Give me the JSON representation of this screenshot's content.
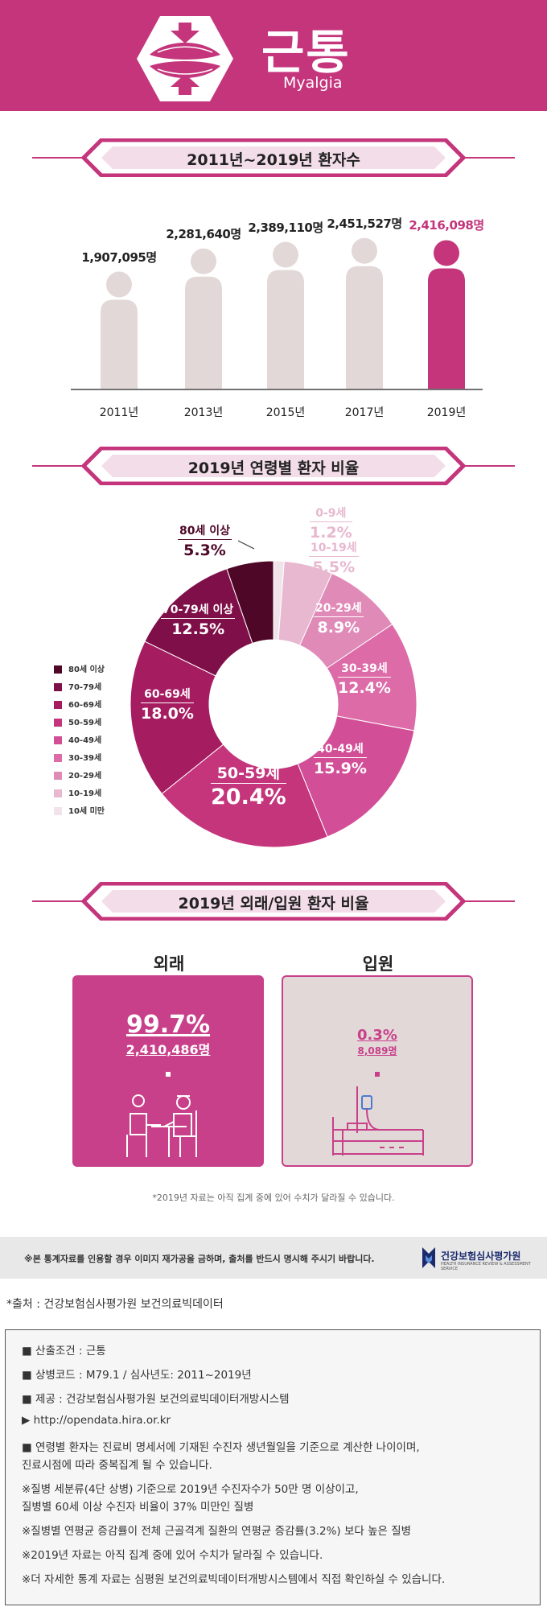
{
  "header": {
    "title": "근통",
    "subtitle": "Myalgia",
    "icon": "muscle-icon"
  },
  "section1": {
    "title": "2011년~2019년 환자수"
  },
  "section2": {
    "title": "2019년 연령별 환자 비율"
  },
  "section3": {
    "title": "2019년 외래/입원 환자 비율"
  },
  "colors": {
    "brand": "#c4357c",
    "figure_default": "#e3d8d8",
    "figure_highlight": "#c4357c"
  },
  "chart_data": [
    {
      "type": "bar",
      "categories": [
        "2011년",
        "2013년",
        "2015년",
        "2017년",
        "2019년"
      ],
      "values": [
        1907095,
        2281640,
        2389110,
        2451527,
        2416098
      ],
      "value_labels": [
        "1,907,095명",
        "2,281,640명",
        "2,389,110명",
        "2,451,527명",
        "2,416,098명"
      ],
      "unit": "명",
      "highlight_index": 4
    },
    {
      "type": "pie",
      "labels": [
        "0-9세",
        "10-19세",
        "20-29세",
        "30-39세",
        "40-49세",
        "50-59세",
        "60-69세",
        "70-79세 이상",
        "80세 이상"
      ],
      "values": [
        1.2,
        5.5,
        8.9,
        12.4,
        15.9,
        20.4,
        18.0,
        12.5,
        5.3
      ],
      "value_labels": [
        "1.2%",
        "5.5%",
        "8.9%",
        "12.4%",
        "15.9%",
        "20.4%",
        "18.0%",
        "12.5%",
        "5.3%"
      ],
      "colors": [
        "#f0e4ea",
        "#e7b8cf",
        "#e08ab8",
        "#dc6ba8",
        "#d24f97",
        "#c4357c",
        "#a51c61",
        "#7f0f48",
        "#4e0726"
      ],
      "legend": [
        "80세 이상",
        "70-79세",
        "60-69세",
        "50-59세",
        "40-49세",
        "30-39세",
        "20-29세",
        "10-19세",
        "10세 미만"
      ],
      "legend_colors": [
        "#4e0726",
        "#7f0f48",
        "#a51c61",
        "#c4357c",
        "#d24f97",
        "#dc6ba8",
        "#e08ab8",
        "#e7b8cf",
        "#f0e4ea"
      ],
      "legend_position": "left"
    },
    {
      "type": "table",
      "items": [
        {
          "title": "외래",
          "percent": "99.7%",
          "count": "2,410,486명",
          "icon": "doctor-consultation-icon"
        },
        {
          "title": "입원",
          "percent": "0.3%",
          "count": "8,089명",
          "icon": "hospital-bed-icon"
        }
      ]
    }
  ],
  "note": "*2019년 자료는 아직 집계 중에 있어 수치가 달라질 수 있습니다.",
  "footer": {
    "warning": "※본 통계자료를 인용할 경우 이미지 재가공을 금하며, 출처를 반드시 명시해 주시기 바랍니다.",
    "logo_text": "건강보험심사평가원",
    "logo_sub": "HEALTH INSURANCE REVIEW & ASSESSMENT SERVICE"
  },
  "source": "*출처 : 건강보험심사평가원 보건의료빅데이터",
  "info": [
    "■ 산출조건 : 근통",
    "■ 상병코드 : M79.1 / 심사년도: 2011~2019년",
    "■ 제공 : 건강보험심사평가원 보건의료빅데이터개방시스템",
    "▶ http://opendata.hira.or.kr",
    "■ 연령별 환자는 진료비 명세서에 기재된 수진자 생년월일을 기준으로 계산한 나이이며,",
    "    진료시점에 따라 중복집계 될 수 있습니다.",
    "※질병 세분류(4단 상병) 기준으로 2019년 수진자수가 50만 명 이상이고,",
    "    질병별 60세 이상 수진자 비율이 37% 미만인 질병",
    "※질병별 연평균 증감률이 전체 근골격계 질환의 연평균 증감률(3.2%) 보다 높은 질병",
    "※2019년 자료는 아직 집계 중에 있어 수치가 달라질 수 있습니다.",
    "※더 자세한 통계 자료는 심평원 보건의료빅데이터개방시스템에서 직접 확인하실 수 있습니다."
  ]
}
